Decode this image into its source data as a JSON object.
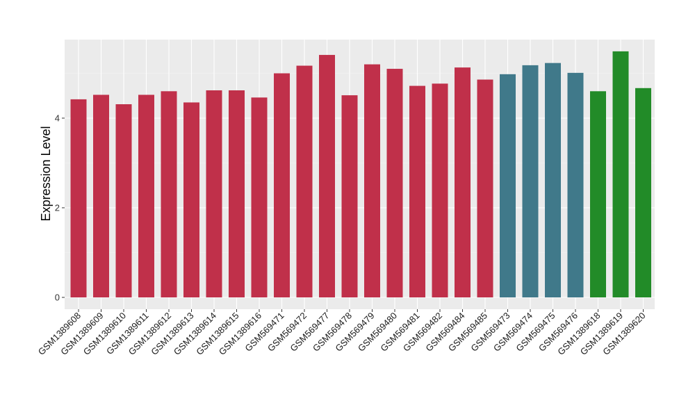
{
  "chart_data": {
    "type": "bar",
    "title": "",
    "xlabel": "",
    "ylabel": "Expression Level",
    "ylim": [
      0,
      5.75
    ],
    "y_ticks": [
      0,
      2,
      4
    ],
    "grid": true,
    "background": "#ebebeb",
    "categories": [
      "GSM1389608",
      "GSM1389609",
      "GSM1389610",
      "GSM1389611",
      "GSM1389612",
      "GSM1389613",
      "GSM1389614",
      "GSM1389615",
      "GSM1389616",
      "GSM569471",
      "GSM569472",
      "GSM569477",
      "GSM569478",
      "GSM569479",
      "GSM569480",
      "GSM569481",
      "GSM569482",
      "GSM569484",
      "GSM569485",
      "GSM569473",
      "GSM569474",
      "GSM569475",
      "GSM569476",
      "GSM1389618",
      "GSM1389619",
      "GSM1389620"
    ],
    "values": [
      4.42,
      4.52,
      4.31,
      4.52,
      4.6,
      4.35,
      4.62,
      4.62,
      4.46,
      5.0,
      5.17,
      5.41,
      4.51,
      5.2,
      5.1,
      4.72,
      4.77,
      5.13,
      4.86,
      4.98,
      5.18,
      5.23,
      5.01,
      4.6,
      5.49,
      4.67
    ],
    "bar_colors": [
      "#c0304a",
      "#c0304a",
      "#c0304a",
      "#c0304a",
      "#c0304a",
      "#c0304a",
      "#c0304a",
      "#c0304a",
      "#c0304a",
      "#c0304a",
      "#c0304a",
      "#c0304a",
      "#c0304a",
      "#c0304a",
      "#c0304a",
      "#c0304a",
      "#c0304a",
      "#c0304a",
      "#c0304a",
      "#40798a",
      "#40798a",
      "#40798a",
      "#40798a",
      "#228b28",
      "#228b28",
      "#228b28"
    ]
  }
}
